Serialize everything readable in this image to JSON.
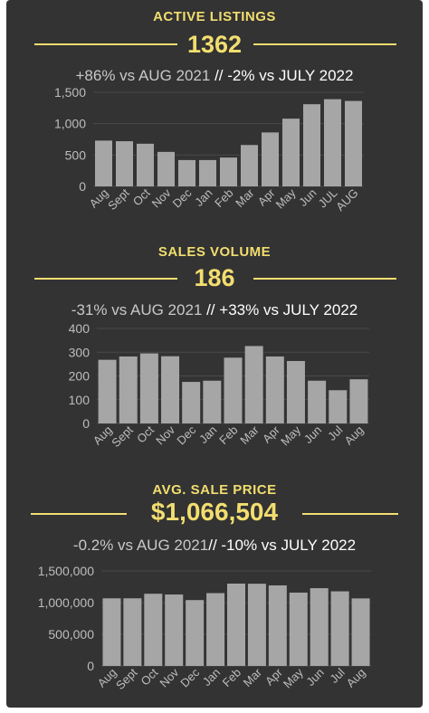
{
  "colors": {
    "background": "#333333",
    "accent": "#f2de6f",
    "bar": "#a6a6a6",
    "grid": "#4a4a4a"
  },
  "panels": [
    {
      "title": "ACTIVE LISTINGS",
      "value": "1362",
      "compare_a": "+86% vs AUG 2021",
      "separator": " // ",
      "compare_b": "-2% vs JULY 2022"
    },
    {
      "title": "SALES VOLUME",
      "value": "186",
      "compare_a": "-31% vs  AUG 2021",
      "separator": " // ",
      "compare_b": "+33% vs JULY 2022"
    },
    {
      "title": "AVG. SALE PRICE",
      "value": "$1,066,504",
      "compare_a": "-0.2% vs  AUG 2021",
      "separator": "// ",
      "compare_b": "-10% vs JULY 2022"
    }
  ],
  "chart_data": [
    {
      "type": "bar",
      "title": "ACTIVE LISTINGS",
      "categories": [
        "Aug",
        "Sept",
        "Oct",
        "Nov",
        "Dec",
        "Jan",
        "Feb",
        "Mar",
        "Apr",
        "May",
        "Jun",
        "JUL",
        "AUG"
      ],
      "values": [
        730,
        720,
        680,
        550,
        420,
        420,
        460,
        660,
        860,
        1080,
        1310,
        1390,
        1362
      ],
      "ylim": [
        0,
        1500
      ],
      "yticks": [
        0,
        500,
        1000,
        1500
      ],
      "ytick_labels": [
        "0",
        "500",
        "1,000",
        "1,500"
      ],
      "grid": true
    },
    {
      "type": "bar",
      "title": "SALES VOLUME",
      "categories": [
        "Aug",
        "Sept",
        "Oct",
        "Nov",
        "Dec",
        "Jan",
        "Feb",
        "Mar",
        "Apr",
        "May",
        "Jun",
        "Jul",
        "Aug"
      ],
      "values": [
        268,
        282,
        295,
        283,
        175,
        180,
        277,
        326,
        282,
        263,
        180,
        140,
        186
      ],
      "ylim": [
        0,
        400
      ],
      "yticks": [
        0,
        100,
        200,
        300,
        400
      ],
      "ytick_labels": [
        "0",
        "100",
        "200",
        "300",
        "400"
      ],
      "grid": true
    },
    {
      "type": "bar",
      "title": "AVG. SALE PRICE",
      "categories": [
        "Aug",
        "Sept",
        "Oct",
        "Nov",
        "Dec",
        "Jan",
        "Feb",
        "Mar",
        "Apr",
        "May",
        "Jun",
        "Jul",
        "Aug"
      ],
      "values": [
        1068000,
        1068000,
        1140000,
        1128000,
        1040000,
        1150000,
        1300000,
        1298000,
        1272000,
        1158000,
        1228000,
        1178000,
        1066504
      ],
      "ylim": [
        0,
        1500000
      ],
      "yticks": [
        0,
        500000,
        1000000,
        1500000
      ],
      "ytick_labels": [
        "0",
        "500,000",
        "1,000,000",
        "1,500,000"
      ],
      "grid": true
    }
  ]
}
